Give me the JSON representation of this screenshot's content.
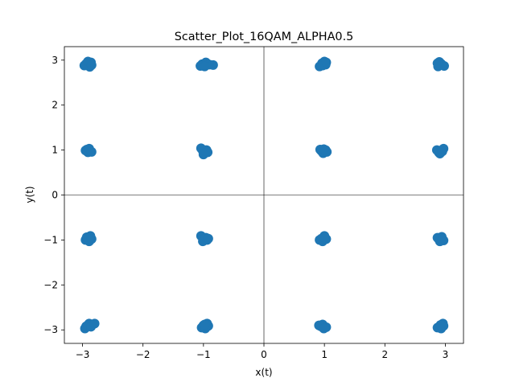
{
  "chart_data": {
    "type": "scatter",
    "title": "Scatter_Plot_16QAM_ALPHA0.5",
    "xlabel": "x(t)",
    "ylabel": "y(t)",
    "xlim": [
      -3.3,
      3.3
    ],
    "ylim": [
      -3.3,
      3.3
    ],
    "x_ticks": [
      -3,
      -2,
      -1,
      0,
      1,
      2,
      3
    ],
    "y_ticks": [
      -3,
      -2,
      -1,
      0,
      1,
      2,
      3
    ],
    "x_tick_labels": [
      "−3",
      "−2",
      "−1",
      "0",
      "1",
      "2",
      "3"
    ],
    "y_tick_labels": [
      "−3",
      "−2",
      "−1",
      "0",
      "1",
      "2",
      "3"
    ],
    "grid": false,
    "reference_lines": {
      "x": 0,
      "y": 0
    },
    "marker_color": "#1f77b4",
    "points": [
      {
        "x": -2.94,
        "y": 2.92
      },
      {
        "x": -2.88,
        "y": 2.85
      },
      {
        "x": -2.97,
        "y": 2.88
      },
      {
        "x": -2.86,
        "y": 2.95
      },
      {
        "x": -2.91,
        "y": 2.97
      },
      {
        "x": -2.85,
        "y": 2.89
      },
      {
        "x": -1.02,
        "y": 2.91
      },
      {
        "x": -0.96,
        "y": 2.95
      },
      {
        "x": -0.9,
        "y": 2.9
      },
      {
        "x": -1.05,
        "y": 2.87
      },
      {
        "x": -0.98,
        "y": 2.86
      },
      {
        "x": -0.84,
        "y": 2.89
      },
      {
        "x": 0.96,
        "y": 2.93
      },
      {
        "x": 1.02,
        "y": 2.9
      },
      {
        "x": 0.92,
        "y": 2.86
      },
      {
        "x": 1.0,
        "y": 2.97
      },
      {
        "x": 0.97,
        "y": 2.88
      },
      {
        "x": 1.03,
        "y": 2.95
      },
      {
        "x": 2.93,
        "y": 2.92
      },
      {
        "x": 2.88,
        "y": 2.86
      },
      {
        "x": 2.98,
        "y": 2.87
      },
      {
        "x": 2.9,
        "y": 2.96
      },
      {
        "x": 2.95,
        "y": 2.89
      },
      {
        "x": 2.87,
        "y": 2.93
      },
      {
        "x": -2.93,
        "y": 1.01
      },
      {
        "x": -2.87,
        "y": 0.97
      },
      {
        "x": -2.91,
        "y": 0.95
      },
      {
        "x": -2.95,
        "y": 0.99
      },
      {
        "x": -2.89,
        "y": 1.03
      },
      {
        "x": -2.85,
        "y": 0.96
      },
      {
        "x": -1.01,
        "y": 0.98
      },
      {
        "x": -0.95,
        "y": 1.0
      },
      {
        "x": -1.04,
        "y": 1.04
      },
      {
        "x": -0.98,
        "y": 0.93
      },
      {
        "x": -0.93,
        "y": 0.95
      },
      {
        "x": -1.0,
        "y": 0.9
      },
      {
        "x": 0.95,
        "y": 0.98
      },
      {
        "x": 1.02,
        "y": 1.0
      },
      {
        "x": 0.98,
        "y": 0.93
      },
      {
        "x": 0.93,
        "y": 1.01
      },
      {
        "x": 1.04,
        "y": 0.96
      },
      {
        "x": 0.99,
        "y": 1.02
      },
      {
        "x": 2.89,
        "y": 0.95
      },
      {
        "x": 2.94,
        "y": 0.99
      },
      {
        "x": 2.97,
        "y": 1.03
      },
      {
        "x": 2.91,
        "y": 0.92
      },
      {
        "x": 2.86,
        "y": 1.0
      },
      {
        "x": 2.95,
        "y": 0.97
      },
      {
        "x": -2.92,
        "y": -0.97
      },
      {
        "x": -2.87,
        "y": -0.91
      },
      {
        "x": -2.95,
        "y": -1.0
      },
      {
        "x": -2.89,
        "y": -1.03
      },
      {
        "x": -2.93,
        "y": -0.94
      },
      {
        "x": -2.85,
        "y": -0.98
      },
      {
        "x": -1.04,
        "y": -0.91
      },
      {
        "x": -0.99,
        "y": -0.98
      },
      {
        "x": -0.94,
        "y": -1.0
      },
      {
        "x": -1.01,
        "y": -1.03
      },
      {
        "x": -0.96,
        "y": -0.95
      },
      {
        "x": -0.92,
        "y": -0.97
      },
      {
        "x": 0.95,
        "y": -0.97
      },
      {
        "x": 1.0,
        "y": -0.91
      },
      {
        "x": 0.97,
        "y": -1.03
      },
      {
        "x": 1.03,
        "y": -0.98
      },
      {
        "x": 0.92,
        "y": -1.0
      },
      {
        "x": 0.99,
        "y": -0.94
      },
      {
        "x": 2.89,
        "y": -0.98
      },
      {
        "x": 2.94,
        "y": -0.93
      },
      {
        "x": 2.97,
        "y": -1.01
      },
      {
        "x": 2.91,
        "y": -1.03
      },
      {
        "x": 2.87,
        "y": -0.95
      },
      {
        "x": 2.95,
        "y": -0.99
      },
      {
        "x": -2.94,
        "y": -2.92
      },
      {
        "x": -2.89,
        "y": -2.86
      },
      {
        "x": -2.96,
        "y": -2.97
      },
      {
        "x": -2.91,
        "y": -2.89
      },
      {
        "x": -2.86,
        "y": -2.93
      },
      {
        "x": -2.8,
        "y": -2.86
      },
      {
        "x": -1.0,
        "y": -2.9
      },
      {
        "x": -0.94,
        "y": -2.86
      },
      {
        "x": -1.03,
        "y": -2.95
      },
      {
        "x": -0.97,
        "y": -2.97
      },
      {
        "x": -0.92,
        "y": -2.91
      },
      {
        "x": -0.98,
        "y": -2.88
      },
      {
        "x": 0.94,
        "y": -2.92
      },
      {
        "x": 1.0,
        "y": -2.95
      },
      {
        "x": 0.97,
        "y": -2.88
      },
      {
        "x": 1.03,
        "y": -2.94
      },
      {
        "x": 0.91,
        "y": -2.9
      },
      {
        "x": 0.99,
        "y": -2.97
      },
      {
        "x": 2.9,
        "y": -2.93
      },
      {
        "x": 2.96,
        "y": -2.86
      },
      {
        "x": 2.93,
        "y": -2.97
      },
      {
        "x": 2.87,
        "y": -2.95
      },
      {
        "x": 2.97,
        "y": -2.91
      },
      {
        "x": 2.92,
        "y": -2.89
      }
    ]
  }
}
